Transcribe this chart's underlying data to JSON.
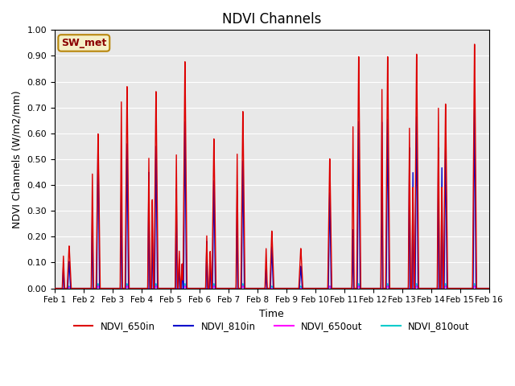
{
  "title": "NDVI Channels",
  "xlabel": "Time",
  "ylabel": "NDVI Channels (W/m2/mm)",
  "ylim": [
    0.0,
    1.0
  ],
  "yticks": [
    0.0,
    0.1,
    0.2,
    0.3,
    0.4,
    0.5,
    0.6,
    0.7,
    0.8,
    0.9,
    1.0
  ],
  "bg_color": "#e8e8e8",
  "annotation_text": "SW_met",
  "annotation_bg": "#f5f0c8",
  "annotation_edge": "#b8860b",
  "series": {
    "NDVI_650in": {
      "color": "#dd0000",
      "lw": 1.0
    },
    "NDVI_810in": {
      "color": "#0000cc",
      "lw": 1.0
    },
    "NDVI_650out": {
      "color": "#ff00ff",
      "lw": 0.8
    },
    "NDVI_810out": {
      "color": "#00cccc",
      "lw": 0.8
    }
  },
  "day_peaks": {
    "Feb 1": {
      "r650in": 0.17,
      "r810in": 0.11,
      "r650out": 0.005,
      "r810out": 0.01,
      "sub650": [
        0.13
      ],
      "sub810": [
        0.1
      ]
    },
    "Feb 2": {
      "r650in": 0.62,
      "r810in": 0.6,
      "r650out": 0.01,
      "r810out": 0.02,
      "sub650": [
        0.46
      ],
      "sub810": [
        0.33
      ]
    },
    "Feb 3": {
      "r650in": 0.81,
      "r810in": 0.59,
      "r650out": 0.01,
      "r810out": 0.02,
      "sub650": [
        0.75
      ],
      "sub810": [
        0.45
      ]
    },
    "Feb 4": {
      "r650in": 0.79,
      "r810in": 0.58,
      "r650out": 0.01,
      "r810out": 0.02,
      "sub650": [
        0.52,
        0.36
      ],
      "sub810": [
        0.47,
        0.28
      ]
    },
    "Feb 5": {
      "r650in": 0.91,
      "r810in": 0.68,
      "r650out": 0.01,
      "r810out": 0.02,
      "sub650": [
        0.53,
        0.15,
        0.1
      ],
      "sub810": [
        0.4,
        0.12,
        0.1
      ]
    },
    "Feb 6": {
      "r650in": 0.6,
      "r810in": 0.44,
      "r650out": 0.01,
      "r810out": 0.02,
      "sub650": [
        0.21,
        0.15
      ],
      "sub810": [
        0.19,
        0.12
      ]
    },
    "Feb 7": {
      "r650in": 0.71,
      "r810in": 0.52,
      "r650out": 0.01,
      "r810out": 0.02,
      "sub650": [
        0.54
      ],
      "sub810": [
        0.4
      ]
    },
    "Feb 8": {
      "r650in": 0.23,
      "r810in": 0.17,
      "r650out": 0.0,
      "r810out": 0.01,
      "sub650": [
        0.16
      ],
      "sub810": [
        0.08
      ]
    },
    "Feb 9": {
      "r650in": 0.16,
      "r810in": 0.09,
      "r650out": 0.0,
      "r810out": 0.01,
      "sub650": [],
      "sub810": []
    },
    "Feb 10": {
      "r650in": 0.52,
      "r810in": 0.39,
      "r650out": 0.01,
      "r810out": 0.01,
      "sub650": [],
      "sub810": []
    },
    "Feb 11": {
      "r650in": 0.93,
      "r810in": 0.68,
      "r650out": 0.01,
      "r810out": 0.02,
      "sub650": [
        0.65
      ],
      "sub810": [
        0.24
      ]
    },
    "Feb 12": {
      "r650in": 0.93,
      "r810in": 0.69,
      "r650out": 0.01,
      "r810out": 0.02,
      "sub650": [
        0.8
      ],
      "sub810": [
        0.68
      ]
    },
    "Feb 13": {
      "r650in": 0.94,
      "r810in": 0.7,
      "r650out": 0.01,
      "r810out": 0.02,
      "sub650": [
        0.64,
        0.41
      ],
      "sub810": [
        0.57,
        0.48
      ]
    },
    "Feb 14": {
      "r650in": 0.74,
      "r810in": 0.57,
      "r650out": 0.01,
      "r810out": 0.02,
      "sub650": [
        0.72,
        0.41
      ],
      "sub810": [
        0.57,
        0.5
      ]
    },
    "Feb 15": {
      "r650in": 0.98,
      "r810in": 0.73,
      "r650out": 0.01,
      "r810out": 0.02,
      "sub650": [],
      "sub810": []
    }
  },
  "xtick_labels": [
    "Feb 1",
    "Feb 2",
    "Feb 3",
    "Feb 4",
    "Feb 5",
    "Feb 6",
    "Feb 7",
    "Feb 8",
    "Feb 9",
    "Feb 10",
    "Feb 11",
    "Feb 12",
    "Feb 13",
    "Feb 14",
    "Feb 15",
    "Feb 16"
  ]
}
